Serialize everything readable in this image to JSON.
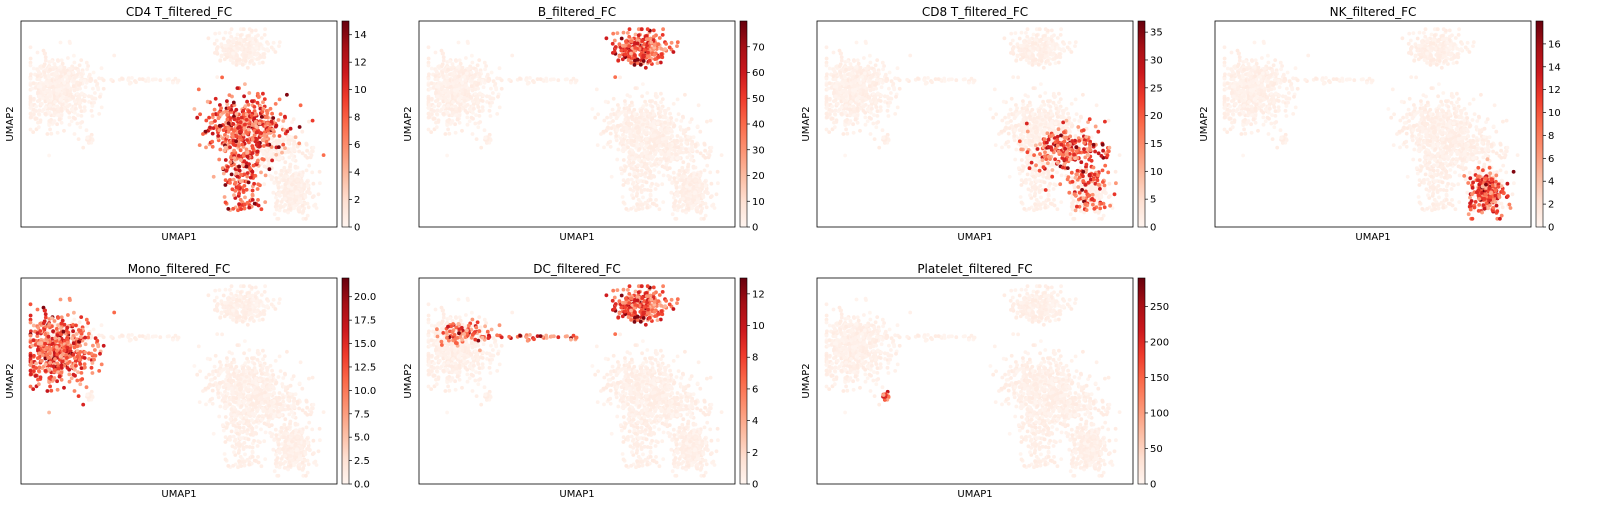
{
  "chart_data": [
    {
      "type": "scatter",
      "title": "CD4 T_filtered_FC",
      "xlabel": "UMAP1",
      "ylabel": "UMAP2",
      "colormap": "Reds",
      "color_range": [
        0,
        15
      ],
      "colorbar_ticks": [
        "0",
        "2",
        "4",
        "6",
        "8",
        "10",
        "12",
        "14"
      ],
      "highlight_clusters": [
        "cd4"
      ]
    },
    {
      "type": "scatter",
      "title": "B_filtered_FC",
      "xlabel": "UMAP1",
      "ylabel": "UMAP2",
      "colormap": "Reds",
      "color_range": [
        0,
        80
      ],
      "colorbar_ticks": [
        "0",
        "10",
        "20",
        "30",
        "40",
        "50",
        "60",
        "70"
      ],
      "highlight_clusters": [
        "b"
      ]
    },
    {
      "type": "scatter",
      "title": "CD8 T_filtered_FC",
      "xlabel": "UMAP1",
      "ylabel": "UMAP2",
      "colormap": "Reds",
      "color_range": [
        0,
        37
      ],
      "colorbar_ticks": [
        "0",
        "5",
        "10",
        "15",
        "20",
        "25",
        "30",
        "35"
      ],
      "highlight_clusters": [
        "cd8"
      ]
    },
    {
      "type": "scatter",
      "title": "NK_filtered_FC",
      "xlabel": "UMAP1",
      "ylabel": "UMAP2",
      "colormap": "Reds",
      "color_range": [
        0,
        18
      ],
      "colorbar_ticks": [
        "0",
        "2",
        "4",
        "6",
        "8",
        "10",
        "12",
        "14",
        "16"
      ],
      "highlight_clusters": [
        "nk"
      ]
    },
    {
      "type": "scatter",
      "title": "Mono_filtered_FC",
      "xlabel": "UMAP1",
      "ylabel": "UMAP2",
      "colormap": "Reds",
      "color_range": [
        0,
        22
      ],
      "colorbar_ticks": [
        "0.0",
        "2.5",
        "5.0",
        "7.5",
        "10.0",
        "12.5",
        "15.0",
        "17.5",
        "20.0"
      ],
      "highlight_clusters": [
        "mono"
      ]
    },
    {
      "type": "scatter",
      "title": "DC_filtered_FC",
      "xlabel": "UMAP1",
      "ylabel": "UMAP2",
      "colormap": "Reds",
      "color_range": [
        0,
        13
      ],
      "colorbar_ticks": [
        "0",
        "2",
        "4",
        "6",
        "8",
        "10",
        "12"
      ],
      "highlight_clusters": [
        "mono_dc",
        "bridge",
        "b"
      ]
    },
    {
      "type": "scatter",
      "title": "Platelet_filtered_FC",
      "xlabel": "UMAP1",
      "ylabel": "UMAP2",
      "colormap": "Reds",
      "color_range": [
        0,
        290
      ],
      "colorbar_ticks": [
        "0",
        "50",
        "100",
        "150",
        "200",
        "250"
      ],
      "highlight_clusters": [
        "platelet"
      ]
    }
  ]
}
